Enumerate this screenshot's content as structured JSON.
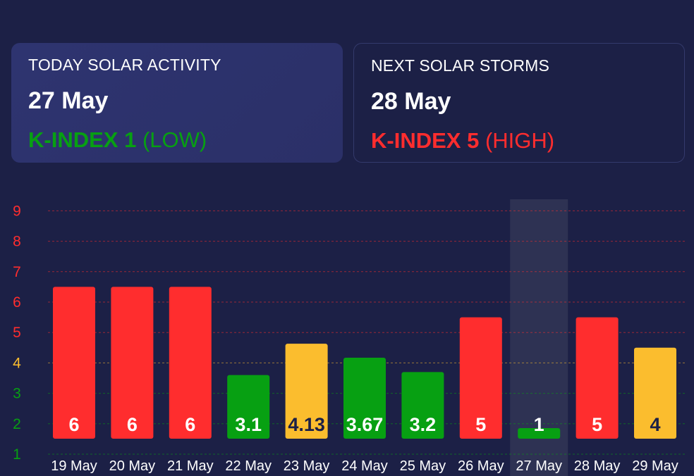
{
  "today_card": {
    "title": "TODAY SOLAR ACTIVITY",
    "date": "27 May",
    "kindex_label": "K-INDEX 1",
    "kindex_level": "(LOW)",
    "color": "#07a012"
  },
  "next_card": {
    "title": "NEXT SOLAR STORMS",
    "date": "28 May",
    "kindex_label": "K-INDEX 5",
    "kindex_level": "(HIGH)",
    "color": "#ff2d2e"
  },
  "chart_data": {
    "type": "bar",
    "categories": [
      "19 May",
      "20 May",
      "21 May",
      "22 May",
      "23 May",
      "24 May",
      "25 May",
      "26 May",
      "27 May",
      "28 May",
      "29 May"
    ],
    "values": [
      6,
      6,
      6,
      3.1,
      4.13,
      3.67,
      3.2,
      5,
      1,
      5,
      4
    ],
    "labels": [
      "6",
      "6",
      "6",
      "3.1",
      "4.13",
      "3.67",
      "3.2",
      "5",
      "1",
      "5",
      "4"
    ],
    "y_ticks": [
      "1",
      "2",
      "3",
      "4",
      "5",
      "6",
      "7",
      "8",
      "9"
    ],
    "ylim": [
      1,
      9
    ],
    "highlighted_category": "27 May",
    "grid": true,
    "colors": {
      "low": "#07a012",
      "moderate": "#fbbd2e",
      "high": "#ff2d2e",
      "background": "#1c2046",
      "highlight": "#2e3253"
    }
  }
}
